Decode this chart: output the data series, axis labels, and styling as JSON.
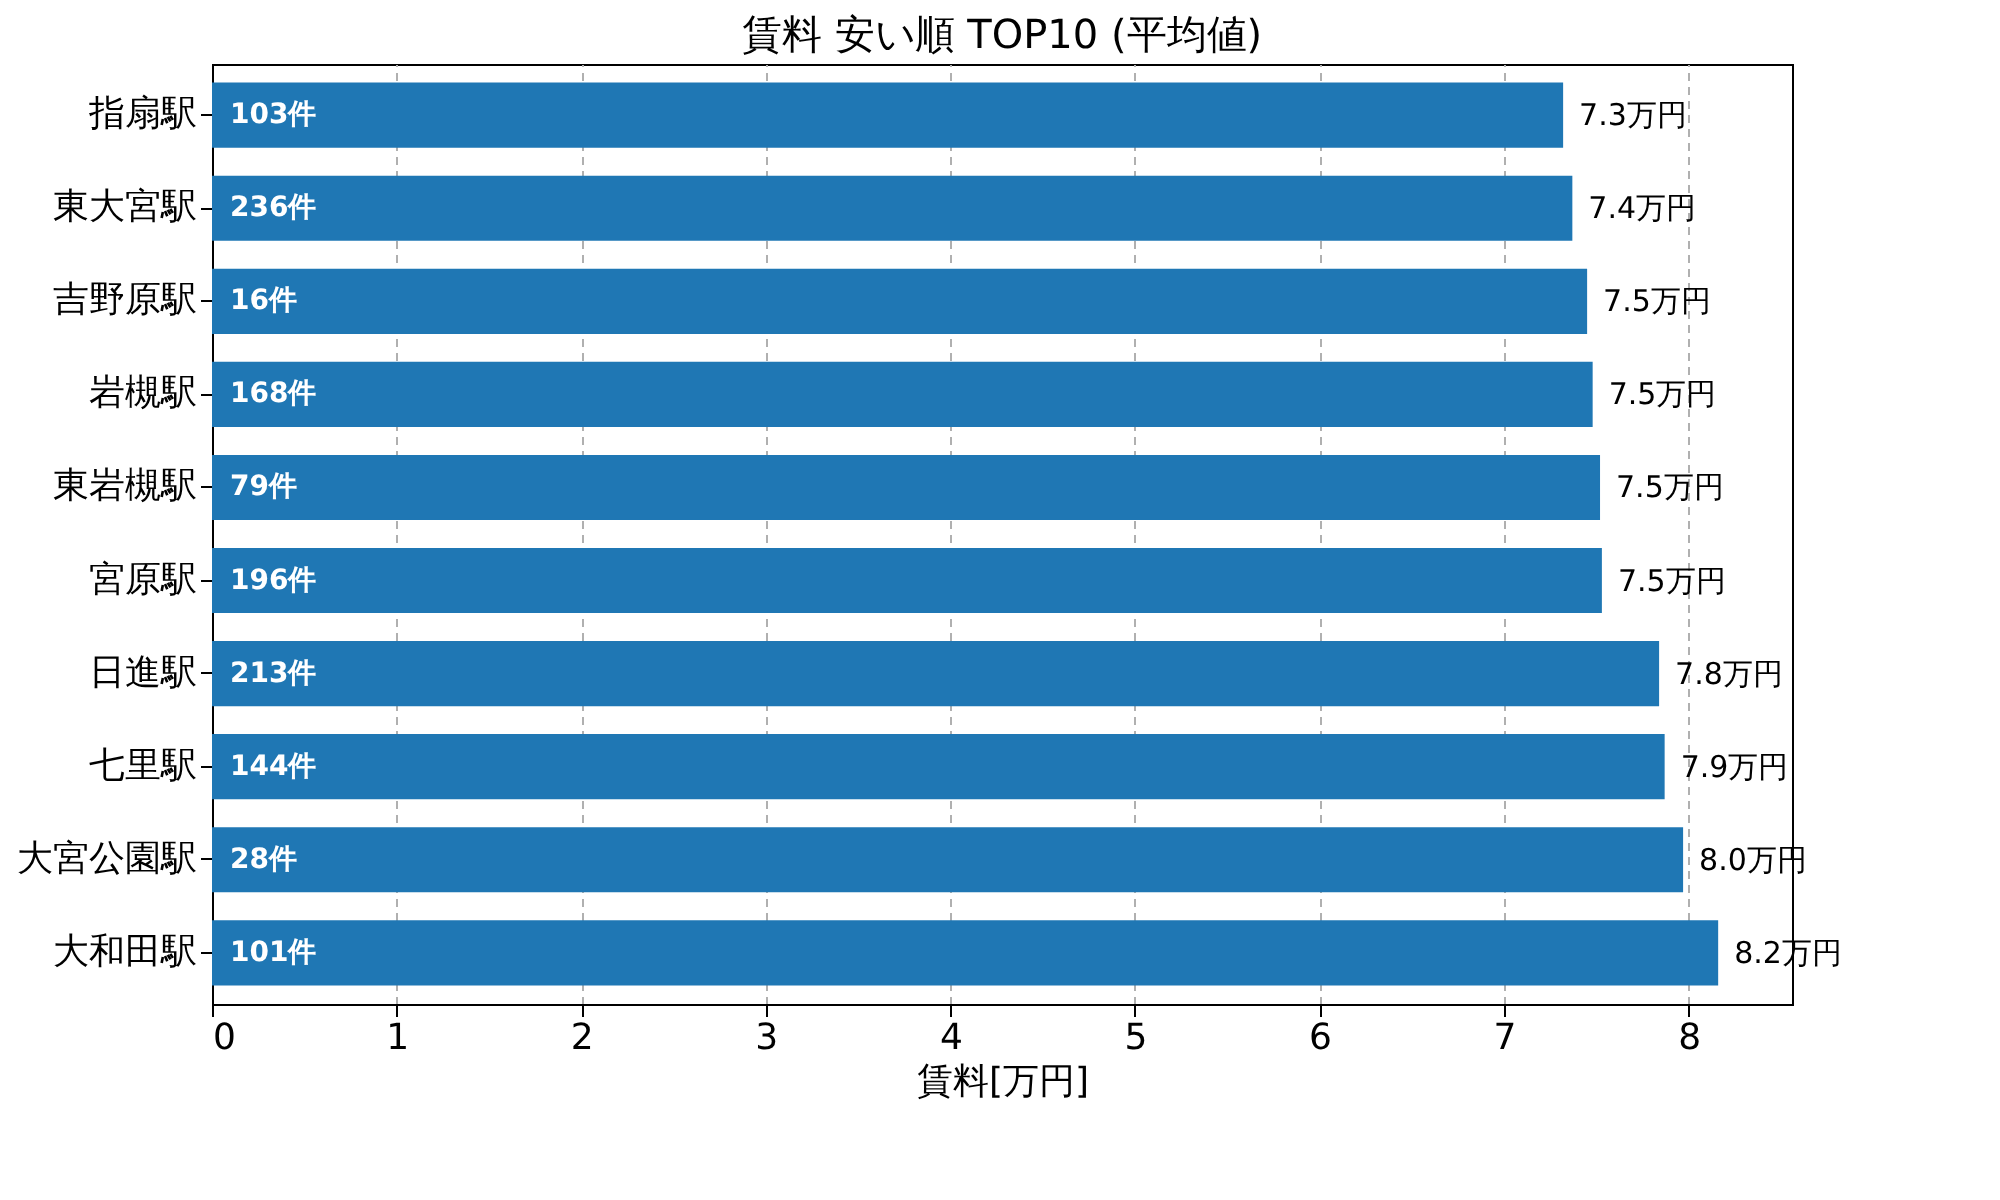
{
  "chart_data": {
    "type": "bar",
    "orientation": "horizontal",
    "title": "賃料 安い順 TOP10 (平均値)",
    "xlabel": "賃料[万円]",
    "categories": [
      "指扇駅",
      "東大宮駅",
      "吉野原駅",
      "岩槻駅",
      "東岩槻駅",
      "宮原駅",
      "日進駅",
      "七里駅",
      "大宮公園駅",
      "大和田駅"
    ],
    "values": [
      7.32,
      7.37,
      7.45,
      7.48,
      7.52,
      7.53,
      7.84,
      7.87,
      7.97,
      8.16
    ],
    "value_labels": [
      "7.3万円",
      "7.4万円",
      "7.5万円",
      "7.5万円",
      "7.5万円",
      "7.5万円",
      "7.8万円",
      "7.9万円",
      "8.0万円",
      "8.2万円"
    ],
    "color": "#1f77b4",
    "xlim": [
      0,
      8.56
    ],
    "xticks": [
      0,
      1,
      2,
      3,
      4,
      5,
      6,
      7,
      8
    ],
    "grid": "x",
    "line_style": "dashed",
    "annotations": [
      {
        "text": "103件",
        "y": "指扇駅"
      },
      {
        "text": "236件",
        "y": "東大宮駅"
      },
      {
        "text": "16件",
        "y": "吉野原駅"
      },
      {
        "text": "168件",
        "y": "岩槻駅"
      },
      {
        "text": "79件",
        "y": "東岩槻駅"
      },
      {
        "text": "196件",
        "y": "宮原駅"
      },
      {
        "text": "213件",
        "y": "日進駅"
      },
      {
        "text": "144件",
        "y": "七里駅"
      },
      {
        "text": "28件",
        "y": "大宮公園駅"
      },
      {
        "text": "101件",
        "y": "大和田駅"
      }
    ]
  }
}
